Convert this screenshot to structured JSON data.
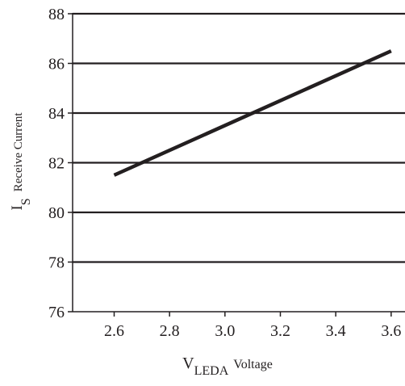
{
  "chart_data": {
    "type": "line",
    "title": "",
    "xlabel": {
      "main": "V",
      "sub": "LEDA",
      "suffix": "Voltage"
    },
    "ylabel": {
      "main": "I",
      "sub": "S",
      "suffix": "Receive Current"
    },
    "xlim": [
      2.45,
      3.65
    ],
    "ylim": [
      76,
      88
    ],
    "xticks": [
      "2.6",
      "2.8",
      "3.0",
      "3.2",
      "3.4",
      "3.6"
    ],
    "xtick_values": [
      2.6,
      2.8,
      3.0,
      3.2,
      3.4,
      3.6
    ],
    "yticks": [
      "76",
      "78",
      "80",
      "82",
      "84",
      "86",
      "88"
    ],
    "ytick_values": [
      76,
      78,
      80,
      82,
      84,
      86,
      88
    ],
    "grid": "horizontal",
    "series": [
      {
        "x": [
          2.6,
          3.6
        ],
        "y": [
          81.5,
          86.5
        ]
      }
    ],
    "colors": {
      "ink": "#231f20"
    }
  }
}
